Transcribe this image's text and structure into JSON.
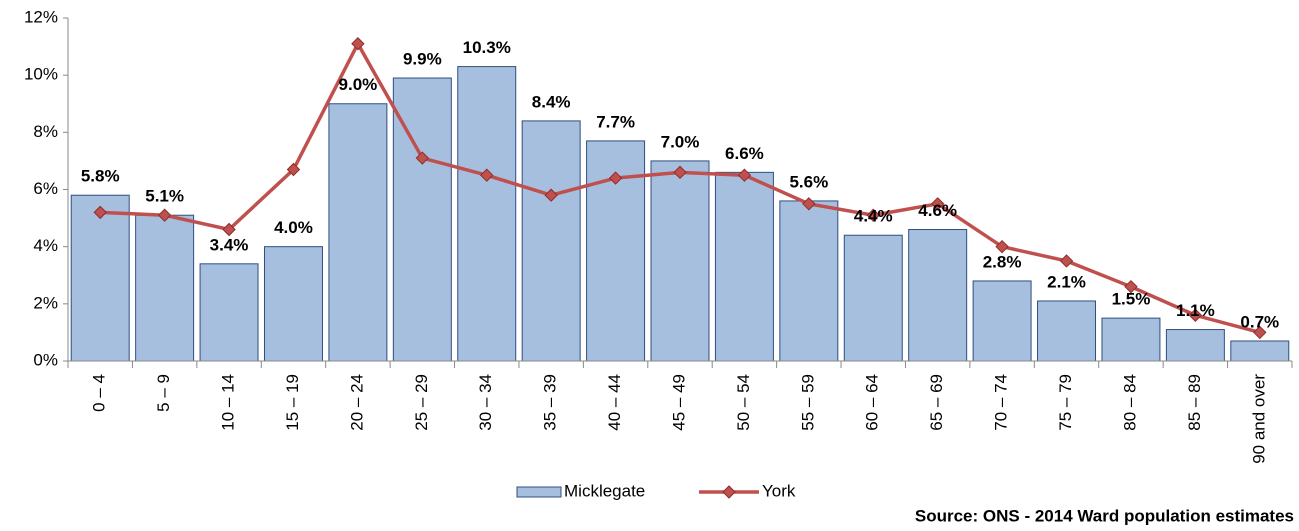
{
  "chart_data": {
    "type": "bar",
    "categories": [
      "0 – 4",
      "5 – 9",
      "10 – 14",
      "15 – 19",
      "20 – 24",
      "25 – 29",
      "30 – 34",
      "35 – 39",
      "40 – 44",
      "45 – 49",
      "50 – 54",
      "55 – 59",
      "60 – 64",
      "65 – 69",
      "70 – 74",
      "75 – 79",
      "80 – 84",
      "85 – 89",
      "90 and over"
    ],
    "series": [
      {
        "name": "Micklegate",
        "type": "bar",
        "color": "#a7bfdf",
        "stroke": "#2f4f7f",
        "values": [
          5.8,
          5.1,
          3.4,
          4.0,
          9.0,
          9.9,
          10.3,
          8.4,
          7.7,
          7.0,
          6.6,
          5.6,
          4.4,
          4.6,
          2.8,
          2.1,
          1.5,
          1.1,
          0.7
        ],
        "value_labels": [
          "5.8%",
          "5.1%",
          "3.4%",
          "4.0%",
          "9.0%",
          "9.9%",
          "10.3%",
          "8.4%",
          "7.7%",
          "7.0%",
          "6.6%",
          "5.6%",
          "4.4%",
          "4.6%",
          "2.8%",
          "2.1%",
          "1.5%",
          "1.1%",
          "0.7%"
        ]
      },
      {
        "name": "York",
        "type": "line",
        "color": "#c0504d",
        "values": [
          5.2,
          5.1,
          4.6,
          6.7,
          11.1,
          7.1,
          6.5,
          5.8,
          6.4,
          6.6,
          6.5,
          5.5,
          5.1,
          5.5,
          4.0,
          3.5,
          2.6,
          1.6,
          1.0
        ]
      }
    ],
    "ylim": [
      0,
      12
    ],
    "yticks": [
      {
        "value": 0,
        "label": "0%"
      },
      {
        "value": 2,
        "label": "2%"
      },
      {
        "value": 4,
        "label": "4%"
      },
      {
        "value": 6,
        "label": "6%"
      },
      {
        "value": 8,
        "label": "8%"
      },
      {
        "value": 10,
        "label": "10%"
      },
      {
        "value": 12,
        "label": "12%"
      }
    ],
    "grid": false,
    "legend": "bottom",
    "source": "Source: ONS - 2014 Ward population estimates"
  }
}
